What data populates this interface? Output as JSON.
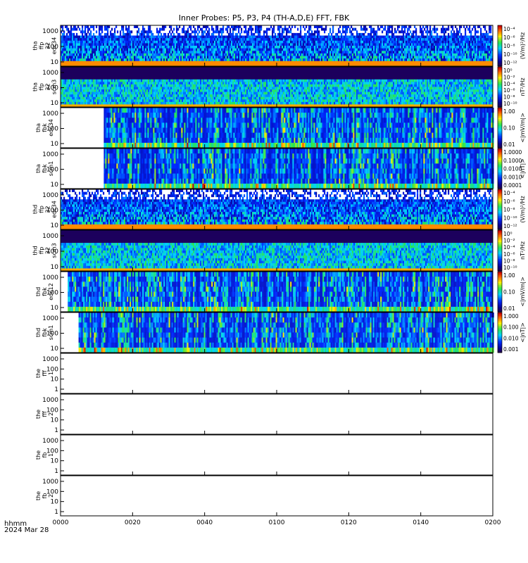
{
  "title": "Inner Probes: P5, P3, P4 (TH-A,D,E) FFT, FBK",
  "footer": {
    "label": "hhmm",
    "date": "2024 Mar 28"
  },
  "x_ticks": [
    "0000",
    "0020",
    "0040",
    "0100",
    "0120",
    "0140",
    "0200"
  ],
  "colors": {
    "frame": "#000000",
    "data_min": "#3a0050",
    "data_max": "#d00000"
  },
  "chart_data": [
    {
      "type": "heatmap",
      "name": "tha_ffp_32_edc34",
      "ylabel": [
        "tha",
        "ffp",
        "32",
        "edc34"
      ],
      "y_ticks": [
        "1000",
        "100",
        "10"
      ],
      "scale": "log",
      "data_start_min": 0,
      "colorbar": {
        "label": "(V/m)²/Hz",
        "ticks": [
          "10⁻⁴",
          "10⁻⁶",
          "10⁻⁸",
          "10⁻¹⁰",
          "10⁻¹²"
        ]
      }
    },
    {
      "type": "heatmap",
      "name": "tha_ffp_32_scm3",
      "ylabel": [
        "tha",
        "ffp",
        "32",
        "scm3"
      ],
      "y_ticks": [
        "1000",
        "100",
        "10"
      ],
      "scale": "log",
      "data_start_min": 0,
      "colorbar": {
        "label": "nT²/Hz",
        "ticks": [
          "10⁰",
          "10⁻²",
          "10⁻⁴",
          "10⁻⁶",
          "10⁻⁸",
          "10⁻¹⁰"
        ]
      }
    },
    {
      "type": "heatmap",
      "name": "tha_fbk_edc34",
      "ylabel": [
        "tha",
        "fbk",
        "edc34"
      ],
      "y_ticks": [
        "1000",
        "100",
        "10"
      ],
      "scale": "log",
      "data_start_min": 12,
      "colorbar": {
        "label": "<|mV/m|>",
        "ticks": [
          "1.00",
          "0.10",
          "0.01"
        ]
      }
    },
    {
      "type": "heatmap",
      "name": "tha_fbk_scm1",
      "ylabel": [
        "tha",
        "fbk",
        "scm1"
      ],
      "y_ticks": [
        "1000",
        "100",
        "10"
      ],
      "scale": "log",
      "data_start_min": 12,
      "colorbar": {
        "label": "<|nT|>",
        "ticks": [
          "1.0000",
          "0.1000",
          "0.0100",
          "0.0010",
          "0.0001"
        ]
      }
    },
    {
      "type": "heatmap",
      "name": "thd_ffp_32_edc34",
      "ylabel": [
        "thd",
        "ffp",
        "32",
        "edc34"
      ],
      "y_ticks": [
        "1000",
        "100",
        "10"
      ],
      "scale": "log",
      "data_start_min": 0,
      "colorbar": {
        "label": "(V/m)²/Hz",
        "ticks": [
          "10⁻⁴",
          "10⁻⁶",
          "10⁻⁸",
          "10⁻¹⁰",
          "10⁻¹²"
        ]
      }
    },
    {
      "type": "heatmap",
      "name": "thd_ffp_32_scm3",
      "ylabel": [
        "thd",
        "ffp",
        "32",
        "scm3"
      ],
      "y_ticks": [
        "1000",
        "100",
        "10"
      ],
      "scale": "log",
      "data_start_min": 0,
      "colorbar": {
        "label": "nT²/Hz",
        "ticks": [
          "10⁰",
          "10⁻²",
          "10⁻⁴",
          "10⁻⁶",
          "10⁻⁸",
          "10⁻¹⁰"
        ]
      }
    },
    {
      "type": "heatmap",
      "name": "thd_fbk_edc12",
      "ylabel": [
        "thd",
        "fbk",
        "edc12"
      ],
      "y_ticks": [
        "1000",
        "100",
        "10"
      ],
      "scale": "log",
      "data_start_min": 2,
      "colorbar": {
        "label": "<|mV/m|>",
        "ticks": [
          "1.00",
          "0.10",
          "0.01"
        ]
      }
    },
    {
      "type": "heatmap",
      "name": "thd_fbk_scm1",
      "ylabel": [
        "thd",
        "fbk",
        "scm1"
      ],
      "y_ticks": [
        "1000",
        "100",
        "10"
      ],
      "scale": "log",
      "data_start_min": 5,
      "colorbar": {
        "label": "<|nT|>",
        "ticks": [
          "1.000",
          "0.100",
          "0.010",
          "0.001"
        ]
      }
    },
    {
      "type": "heatmap",
      "name": "the_fff_1",
      "ylabel": [
        "the",
        "fff",
        "1"
      ],
      "y_ticks": [
        "1000",
        "100",
        "10",
        "1"
      ],
      "scale": "log",
      "empty": true
    },
    {
      "type": "heatmap",
      "name": "the_fff_2",
      "ylabel": [
        "the",
        "fff",
        "2"
      ],
      "y_ticks": [
        "1000",
        "100",
        "10",
        "1"
      ],
      "scale": "log",
      "empty": true
    },
    {
      "type": "heatmap",
      "name": "the_fb_1",
      "ylabel": [
        "the",
        "fb",
        "1"
      ],
      "y_ticks": [
        "1000",
        "100",
        "10",
        "1"
      ],
      "scale": "log",
      "empty": true
    },
    {
      "type": "heatmap",
      "name": "the_fb_2",
      "ylabel": [
        "the",
        "fb",
        "2"
      ],
      "y_ticks": [
        "1000",
        "100",
        "10",
        "1"
      ],
      "scale": "log",
      "empty": true
    }
  ]
}
